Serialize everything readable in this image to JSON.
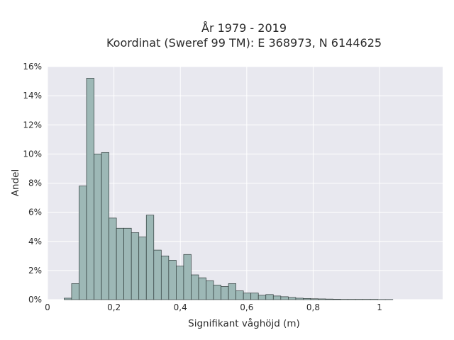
{
  "colors": {
    "plot_background": "#e8e8ef",
    "grid": "#ffffff",
    "bar_fill": "#9db8b6",
    "bar_stroke": "#2f3b3a"
  },
  "chart_data": {
    "type": "bar",
    "title_lines": [
      "År 1979 - 2019",
      "Koordinat (Sweref 99 TM): E 368973, N 6144625"
    ],
    "xlabel": "Signifikant våghöjd (m)",
    "ylabel": "Andel",
    "xlim": [
      0,
      1.19
    ],
    "ylim": [
      0,
      16
    ],
    "grid": true,
    "x_ticks": [
      0,
      0.2,
      0.4,
      0.6,
      0.8,
      1
    ],
    "x_tick_labels": [
      "0",
      "0,2",
      "0,4",
      "0,6",
      "0,8",
      "1"
    ],
    "y_ticks": [
      0,
      2,
      4,
      6,
      8,
      10,
      12,
      14,
      16
    ],
    "y_tick_labels": [
      "0%",
      "2%",
      "4%",
      "6%",
      "8%",
      "10%",
      "12%",
      "14%",
      "16%"
    ],
    "bin_width": 0.0225,
    "bin_starts": [
      0.05,
      0.0725,
      0.095,
      0.1175,
      0.14,
      0.1625,
      0.185,
      0.2075,
      0.23,
      0.2525,
      0.275,
      0.2975,
      0.32,
      0.3425,
      0.365,
      0.3875,
      0.41,
      0.4325,
      0.455,
      0.4775,
      0.5,
      0.5225,
      0.545,
      0.5675,
      0.59,
      0.6125,
      0.635,
      0.6575,
      0.68,
      0.7025,
      0.725,
      0.7475,
      0.77,
      0.7925,
      0.815,
      0.8375,
      0.86,
      0.8825,
      0.905,
      0.9275,
      0.95,
      0.9725,
      0.995,
      1.0175
    ],
    "values": [
      0.1,
      1.1,
      7.8,
      15.2,
      10.0,
      10.1,
      5.6,
      4.9,
      4.9,
      4.6,
      4.3,
      5.8,
      3.4,
      3.0,
      2.7,
      2.3,
      3.1,
      1.7,
      1.5,
      1.3,
      1.0,
      0.9,
      1.1,
      0.6,
      0.45,
      0.45,
      0.3,
      0.35,
      0.25,
      0.2,
      0.15,
      0.1,
      0.08,
      0.06,
      0.05,
      0.04,
      0.03,
      0.02,
      0.02,
      0.02,
      0.02,
      0.02,
      0.01,
      0.01
    ]
  }
}
